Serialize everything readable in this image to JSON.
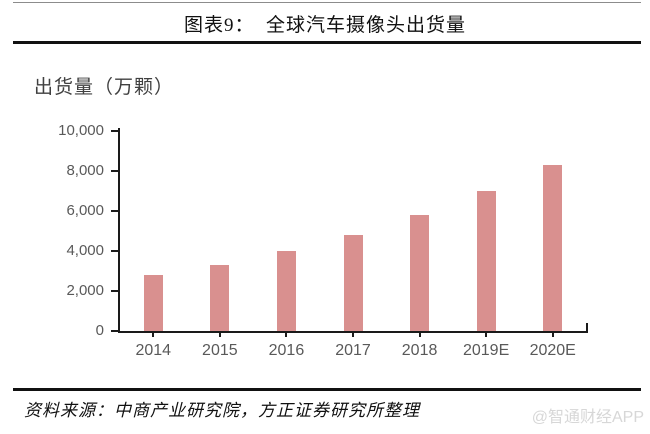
{
  "header": {
    "title": "图表9：  全球汽车摄像头出货量"
  },
  "chart_data": {
    "type": "bar",
    "title": "图表9：全球汽车摄像头出货量",
    "ylabel": "出货量（万颗）",
    "xlabel": "",
    "categories": [
      "2014",
      "2015",
      "2016",
      "2017",
      "2018",
      "2019E",
      "2020E"
    ],
    "values": [
      2800,
      3300,
      4000,
      4800,
      5800,
      7000,
      8300
    ],
    "ylim": [
      0,
      10000
    ],
    "ytick_interval": 2000,
    "ytick_labels_top_to_bottom": [
      "10,000",
      "8,000",
      "6,000",
      "4,000",
      "2,000",
      "0"
    ],
    "bar_color": "#D9908F",
    "axis_color": "#1a1a1a",
    "tick_text_color": "#595959",
    "grid": false,
    "legend": false
  },
  "footer": {
    "source": "资料来源：中商产业研究院，方正证券研究所整理",
    "watermark": "@智通财经APP"
  }
}
